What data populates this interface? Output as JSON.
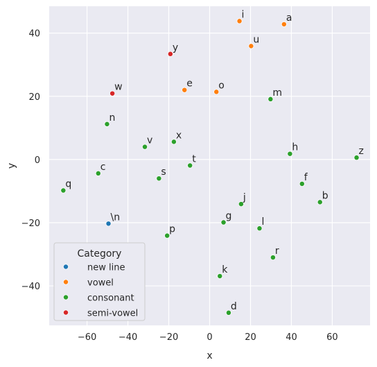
{
  "chart_data": {
    "type": "scatter",
    "title": "",
    "xlabel": "x",
    "ylabel": "y",
    "xlim": [
      -78.5,
      78.5
    ],
    "ylim": [
      -52.5,
      48.5
    ],
    "xticks": [
      -60,
      -40,
      -20,
      0,
      20,
      40,
      60
    ],
    "xtick_labels": [
      "−60",
      "−40",
      "−20",
      "0",
      "20",
      "40",
      "60"
    ],
    "yticks": [
      -40,
      -20,
      0,
      20,
      40
    ],
    "ytick_labels": [
      "−40",
      "−20",
      "0",
      "20",
      "40"
    ],
    "grid": true,
    "legend": {
      "title": "Category",
      "placement": "lower-left",
      "entries": [
        {
          "name": "new line",
          "color": "#1f77b4"
        },
        {
          "name": "vowel",
          "color": "#ff7f0e"
        },
        {
          "name": "consonant",
          "color": "#2ca02c"
        },
        {
          "name": "semi-vowel",
          "color": "#d62728"
        }
      ]
    },
    "points": [
      {
        "label": "\\n",
        "x": -49.5,
        "y": -20.3,
        "category": "new line"
      },
      {
        "label": "i",
        "x": 14.6,
        "y": 43.8,
        "category": "vowel"
      },
      {
        "label": "a",
        "x": 36.4,
        "y": 42.8,
        "category": "vowel"
      },
      {
        "label": "u",
        "x": 20.3,
        "y": 35.9,
        "category": "vowel"
      },
      {
        "label": "e",
        "x": -12.3,
        "y": 22.0,
        "category": "vowel"
      },
      {
        "label": "o",
        "x": 3.3,
        "y": 21.4,
        "category": "vowel"
      },
      {
        "label": "y",
        "x": -19.2,
        "y": 33.4,
        "category": "semi-vowel"
      },
      {
        "label": "w",
        "x": -47.6,
        "y": 20.9,
        "category": "semi-vowel"
      },
      {
        "label": "m",
        "x": 29.8,
        "y": 19.1,
        "category": "consonant"
      },
      {
        "label": "n",
        "x": -50.2,
        "y": 11.2,
        "category": "consonant"
      },
      {
        "label": "v",
        "x": -31.7,
        "y": 4.0,
        "category": "consonant"
      },
      {
        "label": "x",
        "x": -17.5,
        "y": 5.6,
        "category": "consonant"
      },
      {
        "label": "h",
        "x": 39.3,
        "y": 1.8,
        "category": "consonant"
      },
      {
        "label": "z",
        "x": 71.9,
        "y": 0.6,
        "category": "consonant"
      },
      {
        "label": "c",
        "x": -54.5,
        "y": -4.4,
        "category": "consonant"
      },
      {
        "label": "t",
        "x": -9.6,
        "y": -1.9,
        "category": "consonant"
      },
      {
        "label": "s",
        "x": -24.8,
        "y": -6.0,
        "category": "consonant"
      },
      {
        "label": "q",
        "x": -71.6,
        "y": -9.8,
        "category": "consonant"
      },
      {
        "label": "f",
        "x": 45.2,
        "y": -7.7,
        "category": "consonant"
      },
      {
        "label": "b",
        "x": 54.0,
        "y": -13.5,
        "category": "consonant"
      },
      {
        "label": "j",
        "x": 15.4,
        "y": -14.1,
        "category": "consonant"
      },
      {
        "label": "g",
        "x": 6.8,
        "y": -19.9,
        "category": "consonant"
      },
      {
        "label": "l",
        "x": 24.4,
        "y": -21.8,
        "category": "consonant"
      },
      {
        "label": "p",
        "x": -20.8,
        "y": -24.1,
        "category": "consonant"
      },
      {
        "label": "r",
        "x": 31.0,
        "y": -31.0,
        "category": "consonant"
      },
      {
        "label": "k",
        "x": 5.0,
        "y": -36.9,
        "category": "consonant"
      },
      {
        "label": "d",
        "x": 9.3,
        "y": -48.5,
        "category": "consonant"
      }
    ]
  }
}
